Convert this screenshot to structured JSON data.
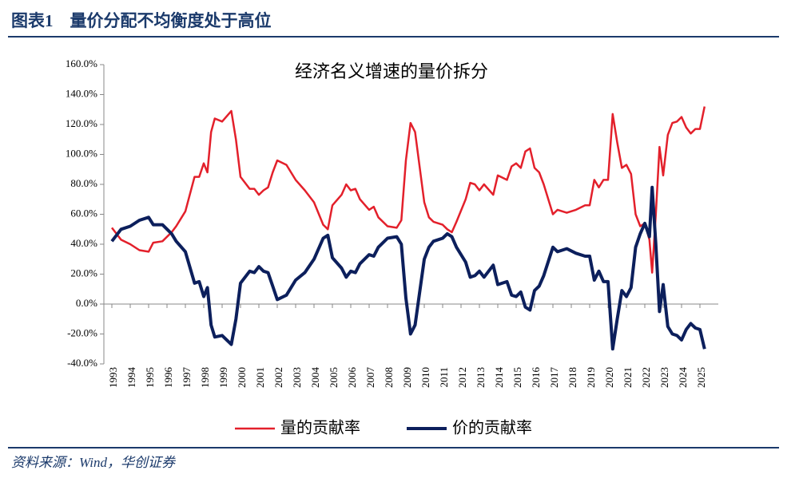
{
  "header": {
    "title": "图表1　量价分配不均衡度处于高位"
  },
  "chart_data": {
    "type": "line",
    "title": "经济名义增速的量价拆分",
    "x": [
      1993.0,
      1993.5,
      1994.0,
      1994.5,
      1995.0,
      1995.25,
      1995.75,
      1996.25,
      1996.5,
      1997.0,
      1997.5,
      1997.75,
      1998.0,
      1998.2,
      1998.4,
      1998.6,
      1999.0,
      1999.5,
      1999.75,
      2000.0,
      2000.5,
      2000.75,
      2001.0,
      2001.25,
      2001.5,
      2001.75,
      2002.0,
      2002.5,
      2003.0,
      2003.5,
      2004.0,
      2004.5,
      2004.75,
      2005.0,
      2005.5,
      2005.75,
      2006.0,
      2006.25,
      2006.5,
      2007.0,
      2007.25,
      2007.5,
      2008.0,
      2008.5,
      2008.75,
      2009.0,
      2009.25,
      2009.5,
      2010.0,
      2010.25,
      2010.5,
      2011.0,
      2011.25,
      2011.5,
      2011.75,
      2012.25,
      2012.5,
      2012.75,
      2013.0,
      2013.25,
      2013.75,
      2014.0,
      2014.5,
      2014.75,
      2015.0,
      2015.25,
      2015.5,
      2015.75,
      2016.0,
      2016.25,
      2016.5,
      2017.0,
      2017.25,
      2017.75,
      2018.25,
      2018.75,
      2019.0,
      2019.25,
      2019.5,
      2019.75,
      2020.0,
      2020.25,
      2020.5,
      2020.75,
      2021.0,
      2021.25,
      2021.5,
      2021.75,
      2022.0,
      2022.25,
      2022.4,
      2022.6,
      2022.8,
      2023.0,
      2023.25,
      2023.5,
      2023.75,
      2024.0,
      2024.25,
      2024.5,
      2024.75,
      2025.0,
      2025.25
    ],
    "series": [
      {
        "name": "量的贡献率",
        "color": "#e3202b",
        "values": [
          51,
          43,
          40,
          36,
          35,
          41,
          42,
          48,
          52,
          62,
          85,
          85,
          94,
          88,
          115,
          124,
          122,
          129,
          110,
          85,
          77,
          77,
          73,
          76,
          78,
          88,
          96,
          93,
          83,
          76,
          68,
          53,
          50,
          66,
          73,
          80,
          76,
          77,
          70,
          63,
          65,
          58,
          52,
          51,
          56,
          96,
          121,
          115,
          68,
          58,
          55,
          53,
          50,
          48,
          55,
          70,
          81,
          80,
          76,
          80,
          73,
          86,
          83,
          92,
          94,
          91,
          102,
          104,
          91,
          88,
          80,
          60,
          63,
          61,
          63,
          66,
          66,
          83,
          78,
          83,
          83,
          127,
          108,
          91,
          93,
          87,
          60,
          52,
          54,
          43,
          21,
          60,
          105,
          86,
          113,
          121,
          122,
          125,
          118,
          114,
          117,
          117,
          132
        ]
      },
      {
        "name": "价的贡献率",
        "color": "#0c1f5c",
        "values": [
          42,
          50,
          52,
          56,
          58,
          53,
          53,
          47,
          42,
          35,
          14,
          15,
          5,
          11,
          -14,
          -22,
          -21,
          -27,
          -10,
          14,
          22,
          21,
          25,
          22,
          21,
          12,
          3,
          6,
          16,
          21,
          30,
          44,
          46,
          31,
          24,
          18,
          22,
          21,
          27,
          33,
          32,
          38,
          44,
          45,
          40,
          4,
          -20,
          -14,
          30,
          38,
          42,
          44,
          47,
          45,
          38,
          28,
          18,
          19,
          22,
          18,
          26,
          13,
          15,
          6,
          5,
          8,
          -2,
          -4,
          9,
          12,
          19,
          38,
          35,
          37,
          34,
          32,
          32,
          16,
          22,
          15,
          15,
          -30,
          -10,
          9,
          5,
          11,
          38,
          47,
          54,
          45,
          78,
          40,
          -5,
          13,
          -15,
          -20,
          -21,
          -24,
          -17,
          -13,
          -16,
          -17,
          -30
        ]
      }
    ],
    "xlim": [
      1993,
      2026
    ],
    "xticks": [
      1993,
      1994,
      1995,
      1996,
      1997,
      1998,
      1999,
      2000,
      2001,
      2002,
      2003,
      2004,
      2005,
      2006,
      2007,
      2008,
      2009,
      2010,
      2011,
      2012,
      2013,
      2014,
      2015,
      2016,
      2017,
      2018,
      2019,
      2020,
      2021,
      2022,
      2023,
      2024,
      2025
    ],
    "ylim": [
      -40,
      160
    ],
    "yticks": [
      {
        "value": -40,
        "label": "-40.0%"
      },
      {
        "value": -20,
        "label": "-20.0%"
      },
      {
        "value": 0,
        "label": "0.0%"
      },
      {
        "value": 20,
        "label": "20.0%"
      },
      {
        "value": 40,
        "label": "40.0%"
      },
      {
        "value": 60,
        "label": "60.0%"
      },
      {
        "value": 80,
        "label": "80.0%"
      },
      {
        "value": 100,
        "label": "100.0%"
      },
      {
        "value": 120,
        "label": "120.0%"
      },
      {
        "value": 140,
        "label": "140.0%"
      },
      {
        "value": 160,
        "label": "160.0%"
      }
    ]
  },
  "footer": {
    "source": "资料来源：Wind，华创证券"
  }
}
